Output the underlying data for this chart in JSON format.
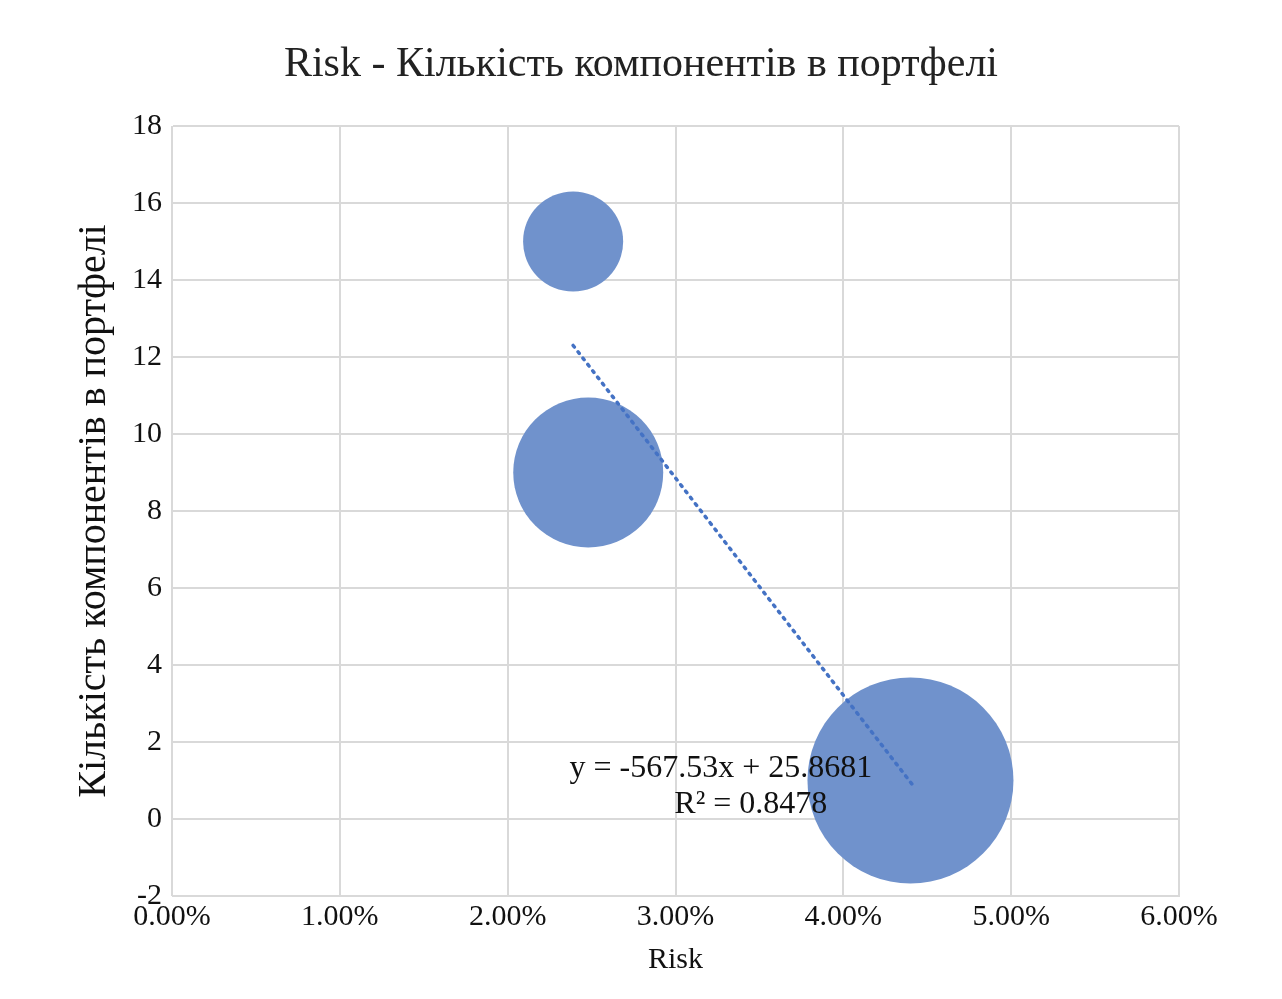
{
  "chart_data": {
    "type": "bubble",
    "title": "Risk - Кількість компонентів в портфелі",
    "xlabel": "Risk",
    "ylabel": "Кількість компонентів в портфелі",
    "series": [
      {
        "color": "#7092cc",
        "x": [
          0.0239,
          0.0248,
          0.044
        ],
        "values": [
          15,
          9,
          1
        ],
        "sizes": [
          0.236,
          0.53,
          1
        ]
      },
      {
        "type": "line",
        "color": "#4472c4",
        "line_style": "dotted",
        "x": [
          0.0239,
          0.0441
        ],
        "values": [
          12.3,
          0.9
        ]
      }
    ],
    "xlim": [
      0,
      0.06
    ],
    "xticks": [
      {
        "value": 0,
        "label": "0.00%"
      },
      {
        "value": 0.01,
        "label": "1.00%"
      },
      {
        "value": 0.02,
        "label": "2.00%"
      },
      {
        "value": 0.03,
        "label": "3.00%"
      },
      {
        "value": 0.04,
        "label": "4.00%"
      },
      {
        "value": 0.05,
        "label": "5.00%"
      },
      {
        "value": 0.06,
        "label": "6.00%"
      }
    ],
    "ylim": [
      -2,
      18
    ],
    "yticks": [
      -2,
      0,
      2,
      4,
      6,
      8,
      10,
      12,
      14,
      16,
      18
    ],
    "annotations": [
      "y = -567.53x + 25.8681",
      "R² = 0.8478"
    ],
    "grid": true,
    "legend": false
  }
}
